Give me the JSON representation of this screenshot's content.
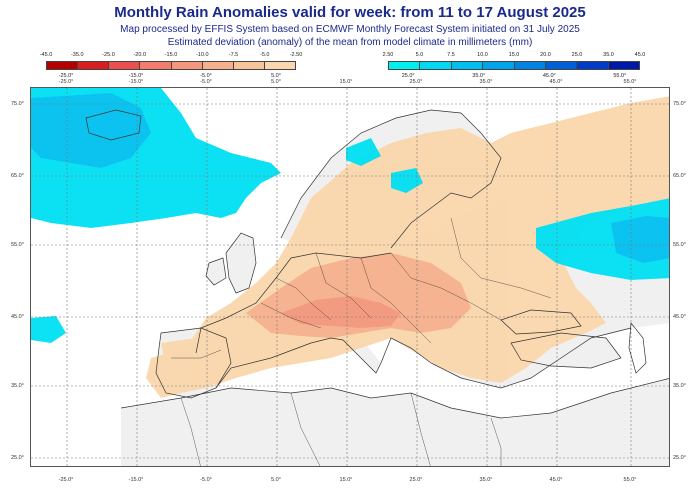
{
  "title": "Monthly Rain Anomalies valid for week: from 11 to 17 August 2025",
  "subtitle1": "Map processed by EFFIS System based on ECMWF Monthly Forecast System initiated on 31 July 2025",
  "subtitle2": "Estimated deviation (anomaly) of the mean from model climate in millimeters (mm)",
  "legend_negative": {
    "bounds": [
      "-45.0",
      "-35.0",
      "-25.0",
      "-20.0",
      "-15.0",
      "-10.0",
      "-7.5",
      "-5.0",
      "-2.50"
    ],
    "labels": [
      "-25.0°",
      "-15.0°",
      "-5.0°",
      "5.0°"
    ],
    "colors": [
      "#b50000",
      "#d81e1e",
      "#ec4f4f",
      "#f47c6c",
      "#f4977c",
      "#f6b08c",
      "#f8c49a",
      "#fad7ac"
    ]
  },
  "legend_positive": {
    "bounds": [
      "2.50",
      "5.0",
      "7.5",
      "10.0",
      "15.0",
      "20.0",
      "25.0",
      "35.0",
      "45.0"
    ],
    "labels": [
      "25.0°",
      "35.0°",
      "45.0°",
      "55.0°"
    ],
    "colors": [
      "#00f0f0",
      "#00d8f4",
      "#00c0f0",
      "#00a4ea",
      "#0084e2",
      "#0060d8",
      "#003cc8",
      "#001aa8"
    ]
  },
  "map_colors": {
    "land": "#f0f0f0",
    "sea": "#ffffff",
    "dry_light": "#fad7ac",
    "dry_mid": "#f6b08c",
    "dry_strong": "#f4977c",
    "wet_light": "#00e0f4",
    "wet_mid": "#00c0f0",
    "wet_strong": "#0084e2",
    "coast": "#333333",
    "grid": "#777777"
  },
  "axes": {
    "lat_labels": [
      "75.0°",
      "65.0°",
      "55.0°",
      "45.0°",
      "35.0°",
      "25.0°"
    ],
    "lon_bottom": [
      "-25.0°",
      "-15.0°",
      "-5.0°",
      "5.0°",
      "15.0°",
      "25.0°",
      "35.0°",
      "45.0°",
      "55.0°"
    ],
    "lon_top": [
      "-25.0°",
      "-15.0°",
      "-5.0°",
      "5.0°",
      "15.0°",
      "25.0°",
      "35.0°",
      "45.0°",
      "55.0°"
    ]
  }
}
